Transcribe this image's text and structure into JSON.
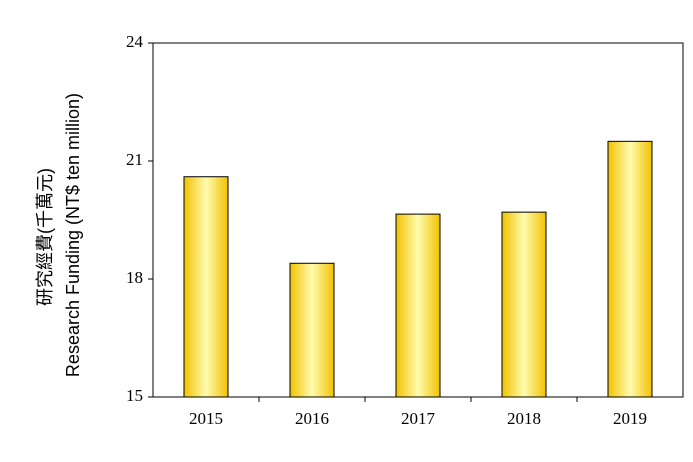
{
  "chart_data": {
    "type": "bar",
    "y_label_lines": [
      "研究經費(千萬元)",
      "Research Funding (NT$ ten million)"
    ],
    "categories": [
      "2015",
      "2016",
      "2017",
      "2018",
      "2019"
    ],
    "values": [
      20.6,
      18.4,
      19.65,
      19.7,
      21.5
    ],
    "color": "#f2c200",
    "ylim": [
      15,
      24
    ],
    "yticks": [
      15,
      18,
      21,
      24
    ],
    "grid": false
  }
}
